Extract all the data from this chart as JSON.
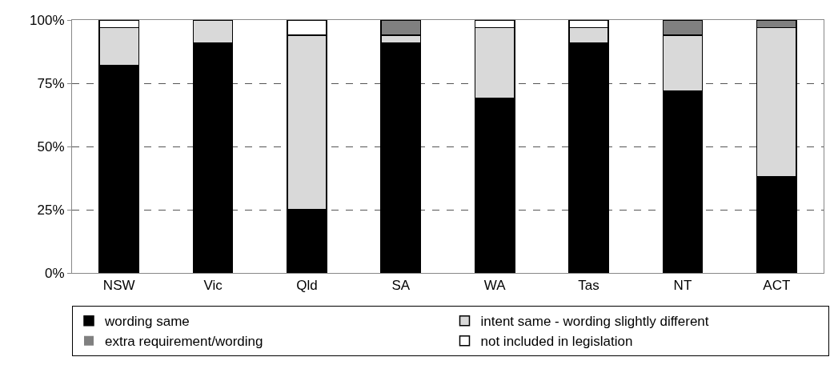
{
  "chart_data": {
    "type": "bar",
    "stacked": true,
    "categories": [
      "NSW",
      "Vic",
      "Qld",
      "SA",
      "WA",
      "Tas",
      "NT",
      "ACT"
    ],
    "series": [
      {
        "name": "wording same",
        "color": "#000000",
        "values": [
          82,
          91,
          25,
          91,
          69,
          91,
          72,
          38
        ]
      },
      {
        "name": "intent same - wording slightly different",
        "color": "#d9d9d9",
        "values": [
          15,
          9,
          69,
          3,
          28,
          6,
          22,
          59
        ]
      },
      {
        "name": "extra requirement/wording",
        "color": "#808080",
        "values": [
          0,
          0,
          0,
          6,
          0,
          0,
          6,
          3
        ]
      },
      {
        "name": "not included in legislation",
        "color": "#ffffff",
        "values": [
          3,
          0,
          6,
          0,
          3,
          3,
          0,
          0
        ]
      }
    ],
    "ylim": [
      0,
      100
    ],
    "yticks": [
      {
        "value": 0,
        "label": "0%"
      },
      {
        "value": 25,
        "label": "25%"
      },
      {
        "value": 50,
        "label": "50%"
      },
      {
        "value": 75,
        "label": "75%"
      },
      {
        "value": 100,
        "label": "100%"
      }
    ],
    "grid": "y",
    "legend": "bottom"
  }
}
